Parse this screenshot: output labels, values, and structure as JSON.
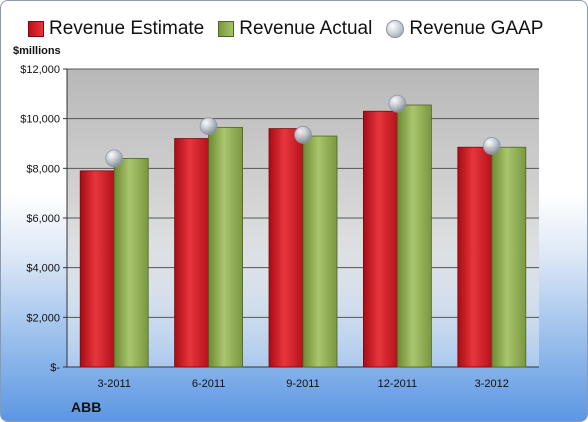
{
  "legend": {
    "estimate_label": "Revenue Estimate",
    "actual_label": "Revenue Actual",
    "gaap_label": "Revenue GAAP"
  },
  "unit_label": "$millions",
  "company": "ABB",
  "colors": {
    "estimate": "#d42027",
    "actual": "#8fae52",
    "gaap": "#c9ced5",
    "plot_background": "#d4d4d4",
    "gridline": "#555555"
  },
  "chart_data": {
    "type": "bar",
    "categories": [
      "3-2011",
      "6-2011",
      "9-2011",
      "12-2011",
      "3-2012"
    ],
    "series": [
      {
        "name": "Revenue Estimate",
        "kind": "bar",
        "values": [
          7900,
          9200,
          9600,
          10300,
          8850
        ]
      },
      {
        "name": "Revenue Actual",
        "kind": "bar",
        "values": [
          8400,
          9650,
          9300,
          10550,
          8850
        ]
      },
      {
        "name": "Revenue GAAP",
        "kind": "marker",
        "values": [
          8400,
          9700,
          9350,
          10600,
          8900
        ]
      }
    ],
    "ylim": [
      0,
      12000
    ],
    "yticks": [
      0,
      2000,
      4000,
      6000,
      8000,
      10000,
      12000
    ],
    "ytick_labels": [
      "$-",
      "$2,000",
      "$4,000",
      "$6,000",
      "$8,000",
      "$10,000",
      "$12,000"
    ],
    "grid": true,
    "legend_position": "top"
  }
}
